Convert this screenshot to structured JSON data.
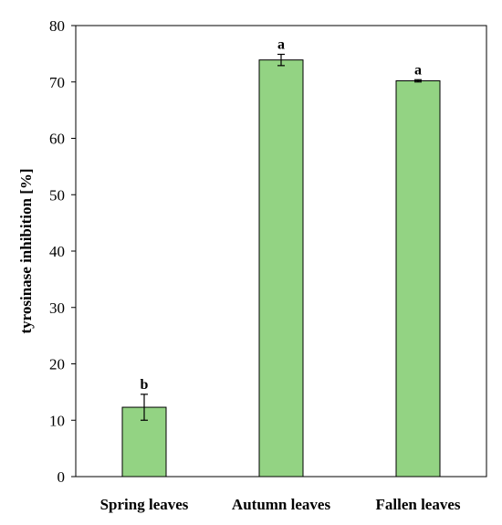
{
  "chart_data": {
    "type": "bar",
    "title": "",
    "xlabel": "",
    "ylabel": "tyrosinase inhibition [%]",
    "ylim": [
      0,
      80
    ],
    "yticks": [
      0,
      10,
      20,
      30,
      40,
      50,
      60,
      70,
      80
    ],
    "grid": false,
    "legend": "none",
    "categories": [
      "Spring leaves",
      "Autumn leaves",
      "Fallen leaves"
    ],
    "values": [
      12.3,
      73.9,
      70.2
    ],
    "errors": [
      2.3,
      1.0,
      0.2
    ],
    "significance_labels": [
      "b",
      "a",
      "a"
    ],
    "bar_color": "#93d383",
    "bar_edge_color": "#000000"
  }
}
